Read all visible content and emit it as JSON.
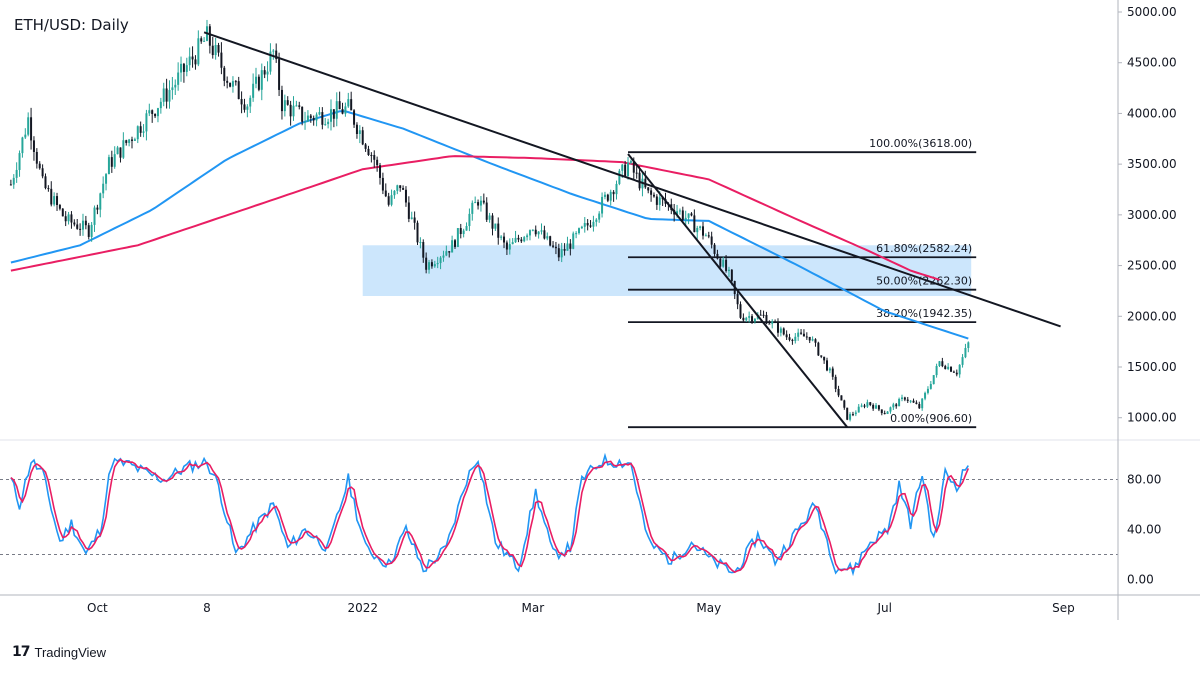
{
  "title": "ETH/USD: Daily",
  "branding": {
    "name": "TradingView",
    "logo_icon": "tradingview-logo-icon"
  },
  "colors": {
    "up_candle": "#26a69a",
    "down_candle": "#131722",
    "sma_100": "#2196f3",
    "sma_200": "#e91e63",
    "stoch_k": "#2196f3",
    "stoch_d": "#e91e63",
    "support_zone": "#bbdefb",
    "trendline": "#131722"
  },
  "chart_data": [
    {
      "type": "candlestick",
      "title": "ETH/USD: Daily",
      "y_axis_ticks": [
        "5000.00",
        "4500.00",
        "4000.00",
        "3500.00",
        "3000.00",
        "2500.00",
        "2000.00",
        "1500.00",
        "1000.00"
      ],
      "ylim": [
        800,
        5000
      ],
      "x_axis_ticks": [
        "Oct",
        "8",
        "2022",
        "Mar",
        "May",
        "Jul",
        "Sep"
      ],
      "price_anchors": [
        [
          "2021-09-01",
          3300
        ],
        [
          "2021-09-07",
          3950
        ],
        [
          "2021-09-12",
          3300
        ],
        [
          "2021-09-20",
          2950
        ],
        [
          "2021-09-28",
          2850
        ],
        [
          "2021-10-05",
          3500
        ],
        [
          "2021-10-15",
          3850
        ],
        [
          "2021-10-28",
          4300
        ],
        [
          "2021-11-08",
          4750
        ],
        [
          "2021-11-16",
          4300
        ],
        [
          "2021-11-22",
          4100
        ],
        [
          "2021-12-01",
          4600
        ],
        [
          "2021-12-04",
          4100
        ],
        [
          "2021-12-12",
          3950
        ],
        [
          "2021-12-20",
          4000
        ],
        [
          "2021-12-27",
          4050
        ],
        [
          "2022-01-05",
          3550
        ],
        [
          "2022-01-10",
          3100
        ],
        [
          "2022-01-14",
          3300
        ],
        [
          "2022-01-23",
          2500
        ],
        [
          "2022-02-01",
          2700
        ],
        [
          "2022-02-10",
          3150
        ],
        [
          "2022-02-20",
          2650
        ],
        [
          "2022-03-01",
          2900
        ],
        [
          "2022-03-10",
          2600
        ],
        [
          "2022-03-20",
          2900
        ],
        [
          "2022-04-03",
          3500
        ],
        [
          "2022-04-10",
          3200
        ],
        [
          "2022-04-20",
          3050
        ],
        [
          "2022-04-30",
          2800
        ],
        [
          "2022-05-08",
          2400
        ],
        [
          "2022-05-12",
          2000
        ],
        [
          "2022-05-20",
          2000
        ],
        [
          "2022-05-28",
          1800
        ],
        [
          "2022-06-05",
          1800
        ],
        [
          "2022-06-12",
          1450
        ],
        [
          "2022-06-18",
          1000
        ],
        [
          "2022-06-25",
          1150
        ],
        [
          "2022-07-01",
          1050
        ],
        [
          "2022-07-08",
          1200
        ],
        [
          "2022-07-13",
          1100
        ],
        [
          "2022-07-20",
          1550
        ],
        [
          "2022-07-26",
          1450
        ],
        [
          "2022-07-30",
          1730
        ]
      ],
      "sma_100_anchors": [
        [
          "2021-09-01",
          2530
        ],
        [
          "2021-09-25",
          2700
        ],
        [
          "2021-10-20",
          3050
        ],
        [
          "2021-11-15",
          3550
        ],
        [
          "2021-12-10",
          3900
        ],
        [
          "2021-12-25",
          4030
        ],
        [
          "2022-01-15",
          3850
        ],
        [
          "2022-02-15",
          3500
        ],
        [
          "2022-03-15",
          3200
        ],
        [
          "2022-04-10",
          2960
        ],
        [
          "2022-05-01",
          2940
        ],
        [
          "2022-06-01",
          2500
        ],
        [
          "2022-07-01",
          2050
        ],
        [
          "2022-07-30",
          1780
        ]
      ],
      "sma_200_anchors": [
        [
          "2021-09-01",
          2450
        ],
        [
          "2021-10-15",
          2700
        ],
        [
          "2021-12-01",
          3150
        ],
        [
          "2022-01-01",
          3450
        ],
        [
          "2022-02-01",
          3580
        ],
        [
          "2022-03-01",
          3560
        ],
        [
          "2022-04-01",
          3520
        ],
        [
          "2022-05-01",
          3350
        ],
        [
          "2022-06-01",
          2950
        ],
        [
          "2022-06-25",
          2650
        ],
        [
          "2022-07-10",
          2450
        ],
        [
          "2022-07-20",
          2360
        ]
      ],
      "trendlines": [
        {
          "from": [
            "2021-11-07",
            4800
          ],
          "to": [
            "2022-08-31",
            1900
          ]
        },
        {
          "from": [
            "2022-04-03",
            3600
          ],
          "to": [
            "2022-06-18",
            906.6
          ]
        }
      ],
      "support_zone": {
        "from": "2022-01-01",
        "to": "2022-07-31",
        "low": 2200,
        "high": 2700
      },
      "fibonacci": {
        "from": "2022-04-03",
        "to": "2022-07-31",
        "levels": [
          {
            "price": 3618.0,
            "label": "100.00%(3618.00)"
          },
          {
            "price": 2582.24,
            "label": "61.80%(2582.24)"
          },
          {
            "price": 2262.3,
            "label": "50.00%(2262.30)"
          },
          {
            "price": 1942.35,
            "label": "38.20%(1942.35)"
          },
          {
            "price": 906.6,
            "label": "0.00%(906.60)"
          }
        ]
      }
    },
    {
      "type": "line",
      "indicator": "stochastic",
      "y_axis_ticks": [
        "80.00",
        "40.00",
        "0.00"
      ],
      "ylim": [
        -10,
        110
      ],
      "overbought": 80,
      "oversold": 20,
      "k_anchors": [
        [
          "2021-09-01",
          80
        ],
        [
          "2021-09-04",
          60
        ],
        [
          "2021-09-08",
          95
        ],
        [
          "2021-09-12",
          85
        ],
        [
          "2021-09-18",
          30
        ],
        [
          "2021-09-22",
          45
        ],
        [
          "2021-09-27",
          20
        ],
        [
          "2021-10-02",
          40
        ],
        [
          "2021-10-06",
          94
        ],
        [
          "2021-10-12",
          92
        ],
        [
          "2021-10-18",
          85
        ],
        [
          "2021-10-24",
          80
        ],
        [
          "2021-11-01",
          90
        ],
        [
          "2021-11-08",
          94
        ],
        [
          "2021-11-12",
          75
        ],
        [
          "2021-11-18",
          20
        ],
        [
          "2021-11-24",
          40
        ],
        [
          "2021-12-01",
          60
        ],
        [
          "2021-12-06",
          25
        ],
        [
          "2021-12-12",
          40
        ],
        [
          "2021-12-20",
          25
        ],
        [
          "2021-12-27",
          80
        ],
        [
          "2022-01-02",
          25
        ],
        [
          "2022-01-10",
          12
        ],
        [
          "2022-01-16",
          40
        ],
        [
          "2022-01-22",
          8
        ],
        [
          "2022-01-30",
          25
        ],
        [
          "2022-02-06",
          80
        ],
        [
          "2022-02-10",
          98
        ],
        [
          "2022-02-16",
          30
        ],
        [
          "2022-02-24",
          10
        ],
        [
          "2022-03-02",
          70
        ],
        [
          "2022-03-08",
          20
        ],
        [
          "2022-03-14",
          25
        ],
        [
          "2022-03-18",
          80
        ],
        [
          "2022-03-25",
          95
        ],
        [
          "2022-04-04",
          93
        ],
        [
          "2022-04-10",
          30
        ],
        [
          "2022-04-18",
          15
        ],
        [
          "2022-04-25",
          30
        ],
        [
          "2022-05-02",
          15
        ],
        [
          "2022-05-10",
          5
        ],
        [
          "2022-05-18",
          35
        ],
        [
          "2022-05-24",
          15
        ],
        [
          "2022-06-01",
          40
        ],
        [
          "2022-06-07",
          60
        ],
        [
          "2022-06-14",
          10
        ],
        [
          "2022-06-20",
          8
        ],
        [
          "2022-06-26",
          30
        ],
        [
          "2022-07-02",
          40
        ],
        [
          "2022-07-06",
          75
        ],
        [
          "2022-07-10",
          45
        ],
        [
          "2022-07-14",
          85
        ],
        [
          "2022-07-18",
          30
        ],
        [
          "2022-07-22",
          85
        ],
        [
          "2022-07-26",
          75
        ],
        [
          "2022-07-30",
          93
        ]
      ]
    }
  ]
}
